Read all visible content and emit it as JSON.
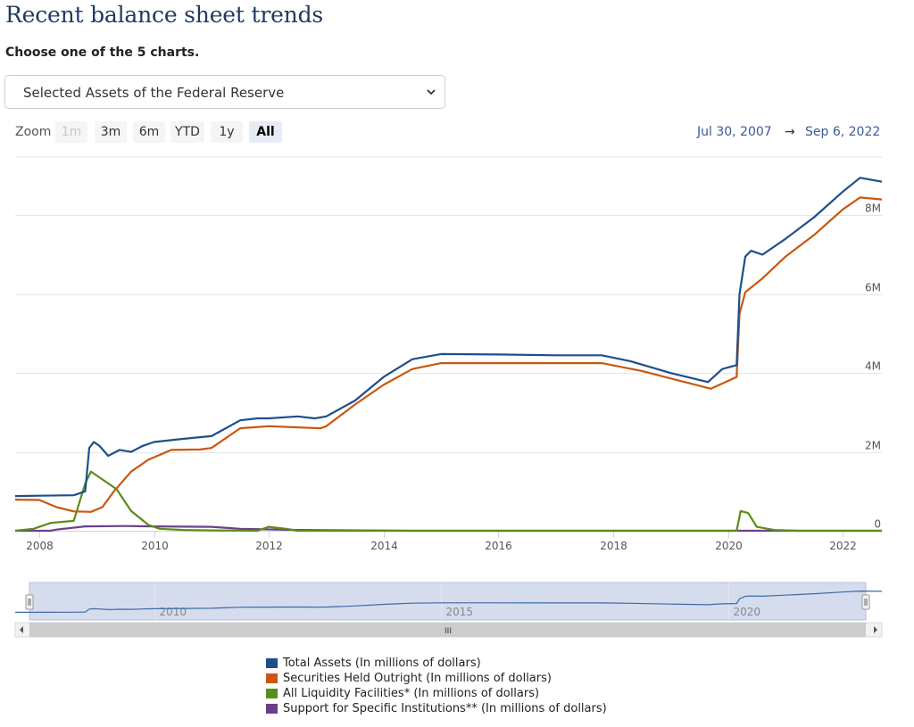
{
  "page": {
    "title": "Recent balance sheet trends",
    "instruction": "Choose one of the 5 charts.",
    "selected_chart": "Selected Assets of the Federal Reserve"
  },
  "zoom": {
    "label": "Zoom",
    "buttons": [
      "1m",
      "3m",
      "6m",
      "YTD",
      "1y",
      "All"
    ],
    "active": "All",
    "disabled": [
      "1m"
    ]
  },
  "range": {
    "start": "Jul 30, 2007",
    "arrow": "→",
    "end": "Sep 6, 2022"
  },
  "navigator": {
    "labels": [
      "2010",
      "2015",
      "2020"
    ],
    "scrollbar_grip": "III"
  },
  "chart_data": {
    "type": "line",
    "x_unit": "year",
    "xlim": [
      2007.58,
      2022.68
    ],
    "ylim": [
      0,
      9500000
    ],
    "y_ticks": [
      0,
      2000000,
      4000000,
      6000000,
      8000000
    ],
    "y_tick_labels": [
      "0",
      "2M",
      "4M",
      "6M",
      "8M"
    ],
    "x_ticks": [
      2008,
      2010,
      2012,
      2014,
      2016,
      2018,
      2020,
      2022
    ],
    "x_tick_labels": [
      "2008",
      "2010",
      "2012",
      "2014",
      "2016",
      "2018",
      "2020",
      "2022"
    ],
    "grid": "horizontal",
    "legend_position": "bottom",
    "series": [
      {
        "name": "Total Assets (In millions of dollars)",
        "color": "#1f4e8c",
        "points": [
          [
            2007.58,
            880000
          ],
          [
            2008.0,
            890000
          ],
          [
            2008.6,
            900000
          ],
          [
            2008.8,
            1000000
          ],
          [
            2008.87,
            2100000
          ],
          [
            2008.95,
            2250000
          ],
          [
            2009.05,
            2150000
          ],
          [
            2009.2,
            1900000
          ],
          [
            2009.4,
            2050000
          ],
          [
            2009.6,
            2000000
          ],
          [
            2009.8,
            2150000
          ],
          [
            2010.0,
            2250000
          ],
          [
            2010.5,
            2330000
          ],
          [
            2011.0,
            2400000
          ],
          [
            2011.5,
            2800000
          ],
          [
            2011.8,
            2850000
          ],
          [
            2012.0,
            2850000
          ],
          [
            2012.5,
            2900000
          ],
          [
            2012.8,
            2850000
          ],
          [
            2013.0,
            2900000
          ],
          [
            2013.5,
            3300000
          ],
          [
            2014.0,
            3900000
          ],
          [
            2014.5,
            4350000
          ],
          [
            2015.0,
            4480000
          ],
          [
            2016.0,
            4470000
          ],
          [
            2017.0,
            4450000
          ],
          [
            2017.8,
            4450000
          ],
          [
            2018.3,
            4300000
          ],
          [
            2019.0,
            4000000
          ],
          [
            2019.65,
            3770000
          ],
          [
            2019.9,
            4100000
          ],
          [
            2020.15,
            4200000
          ],
          [
            2020.2,
            6000000
          ],
          [
            2020.3,
            6950000
          ],
          [
            2020.4,
            7100000
          ],
          [
            2020.6,
            7000000
          ],
          [
            2021.0,
            7400000
          ],
          [
            2021.5,
            7950000
          ],
          [
            2022.0,
            8600000
          ],
          [
            2022.3,
            8950000
          ],
          [
            2022.68,
            8850000
          ]
        ]
      },
      {
        "name": "Securities Held Outright (In millions of dollars)",
        "color": "#c9570e",
        "points": [
          [
            2007.58,
            790000
          ],
          [
            2008.0,
            780000
          ],
          [
            2008.3,
            600000
          ],
          [
            2008.6,
            490000
          ],
          [
            2008.9,
            480000
          ],
          [
            2009.1,
            600000
          ],
          [
            2009.3,
            1000000
          ],
          [
            2009.6,
            1500000
          ],
          [
            2009.9,
            1800000
          ],
          [
            2010.3,
            2050000
          ],
          [
            2010.8,
            2060000
          ],
          [
            2011.0,
            2100000
          ],
          [
            2011.5,
            2600000
          ],
          [
            2012.0,
            2650000
          ],
          [
            2012.9,
            2600000
          ],
          [
            2013.0,
            2650000
          ],
          [
            2013.5,
            3200000
          ],
          [
            2014.0,
            3700000
          ],
          [
            2014.5,
            4100000
          ],
          [
            2015.0,
            4250000
          ],
          [
            2016.0,
            4250000
          ],
          [
            2017.0,
            4250000
          ],
          [
            2017.8,
            4250000
          ],
          [
            2018.5,
            4050000
          ],
          [
            2019.3,
            3750000
          ],
          [
            2019.7,
            3600000
          ],
          [
            2020.15,
            3900000
          ],
          [
            2020.2,
            5500000
          ],
          [
            2020.3,
            6050000
          ],
          [
            2020.6,
            6400000
          ],
          [
            2021.0,
            6950000
          ],
          [
            2021.5,
            7500000
          ],
          [
            2022.0,
            8150000
          ],
          [
            2022.3,
            8450000
          ],
          [
            2022.68,
            8400000
          ]
        ]
      },
      {
        "name": "All Liquidity Facilities* (In millions of dollars)",
        "color": "#5b8c1a",
        "points": [
          [
            2007.58,
            0
          ],
          [
            2007.9,
            50000
          ],
          [
            2008.2,
            200000
          ],
          [
            2008.6,
            250000
          ],
          [
            2008.8,
            1200000
          ],
          [
            2008.9,
            1500000
          ],
          [
            2009.0,
            1400000
          ],
          [
            2009.2,
            1200000
          ],
          [
            2009.35,
            1050000
          ],
          [
            2009.6,
            500000
          ],
          [
            2009.9,
            150000
          ],
          [
            2010.1,
            50000
          ],
          [
            2010.5,
            20000
          ],
          [
            2011.0,
            10000
          ],
          [
            2011.8,
            0
          ],
          [
            2012.0,
            100000
          ],
          [
            2012.3,
            50000
          ],
          [
            2012.5,
            0
          ],
          [
            2020.15,
            0
          ],
          [
            2020.22,
            500000
          ],
          [
            2020.35,
            450000
          ],
          [
            2020.5,
            100000
          ],
          [
            2020.8,
            20000
          ],
          [
            2021.2,
            0
          ],
          [
            2022.68,
            0
          ]
        ]
      },
      {
        "name": "Support for Specific Institutions** (In millions of dollars)",
        "color": "#6b3f86",
        "points": [
          [
            2007.58,
            0
          ],
          [
            2008.2,
            0
          ],
          [
            2008.3,
            30000
          ],
          [
            2008.8,
            110000
          ],
          [
            2009.5,
            120000
          ],
          [
            2010.0,
            110000
          ],
          [
            2011.0,
            100000
          ],
          [
            2011.5,
            50000
          ],
          [
            2012.5,
            20000
          ],
          [
            2014.5,
            0
          ],
          [
            2022.68,
            0
          ]
        ]
      }
    ]
  }
}
